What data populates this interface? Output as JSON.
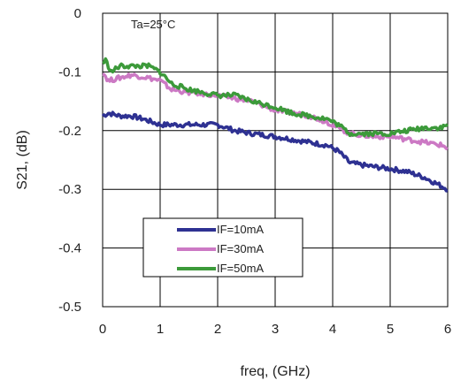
{
  "chart_data": {
    "type": "line",
    "xlabel": "freq, (GHz)",
    "ylabel": "S21, (dB)",
    "xlim": [
      0,
      6
    ],
    "ylim": [
      -0.5,
      0
    ],
    "xticks": [
      "0",
      "1",
      "2",
      "3",
      "4",
      "5",
      "6"
    ],
    "yticks": [
      "0",
      "-0.1",
      "-0.2",
      "-0.3",
      "-0.4",
      "-0.5"
    ],
    "grid": true,
    "legend_position": "bottom-left",
    "annotation": "Ta=25°C",
    "series": [
      {
        "name": "IF=10mA",
        "color": "#2e3192",
        "x": [
          0,
          0.1,
          0.3,
          0.5,
          0.7,
          1.0,
          1.3,
          1.6,
          2.0,
          2.3,
          2.6,
          3.0,
          3.3,
          3.6,
          3.9,
          4.1,
          4.3,
          4.6,
          5.0,
          5.3,
          5.6,
          5.8,
          6.0
        ],
        "y": [
          -0.175,
          -0.17,
          -0.175,
          -0.175,
          -0.18,
          -0.19,
          -0.19,
          -0.19,
          -0.19,
          -0.2,
          -0.205,
          -0.21,
          -0.215,
          -0.22,
          -0.225,
          -0.235,
          -0.255,
          -0.26,
          -0.265,
          -0.27,
          -0.28,
          -0.29,
          -0.3
        ]
      },
      {
        "name": "IF=30mA",
        "color": "#cc79c4",
        "x": [
          0,
          0.1,
          0.3,
          0.5,
          0.8,
          1.0,
          1.2,
          1.5,
          2.0,
          2.3,
          2.6,
          3.0,
          3.3,
          3.6,
          3.9,
          4.1,
          4.3,
          4.7,
          5.0,
          5.3,
          5.6,
          5.9,
          6.0
        ],
        "y": [
          -0.1,
          -0.115,
          -0.11,
          -0.105,
          -0.11,
          -0.115,
          -0.13,
          -0.135,
          -0.14,
          -0.145,
          -0.15,
          -0.165,
          -0.17,
          -0.175,
          -0.185,
          -0.195,
          -0.205,
          -0.21,
          -0.21,
          -0.215,
          -0.22,
          -0.225,
          -0.23
        ]
      },
      {
        "name": "IF=50mA",
        "color": "#3c9a3a",
        "x": [
          0,
          0.05,
          0.15,
          0.3,
          0.5,
          0.8,
          1.0,
          1.2,
          1.5,
          2.0,
          2.3,
          2.6,
          3.0,
          3.3,
          3.6,
          3.9,
          4.1,
          4.3,
          4.7,
          5.0,
          5.3,
          5.6,
          5.9,
          6.0
        ],
        "y": [
          -0.085,
          -0.08,
          -0.1,
          -0.09,
          -0.09,
          -0.09,
          -0.1,
          -0.12,
          -0.13,
          -0.14,
          -0.14,
          -0.15,
          -0.16,
          -0.17,
          -0.175,
          -0.18,
          -0.19,
          -0.205,
          -0.205,
          -0.205,
          -0.2,
          -0.195,
          -0.195,
          -0.19
        ]
      }
    ]
  }
}
